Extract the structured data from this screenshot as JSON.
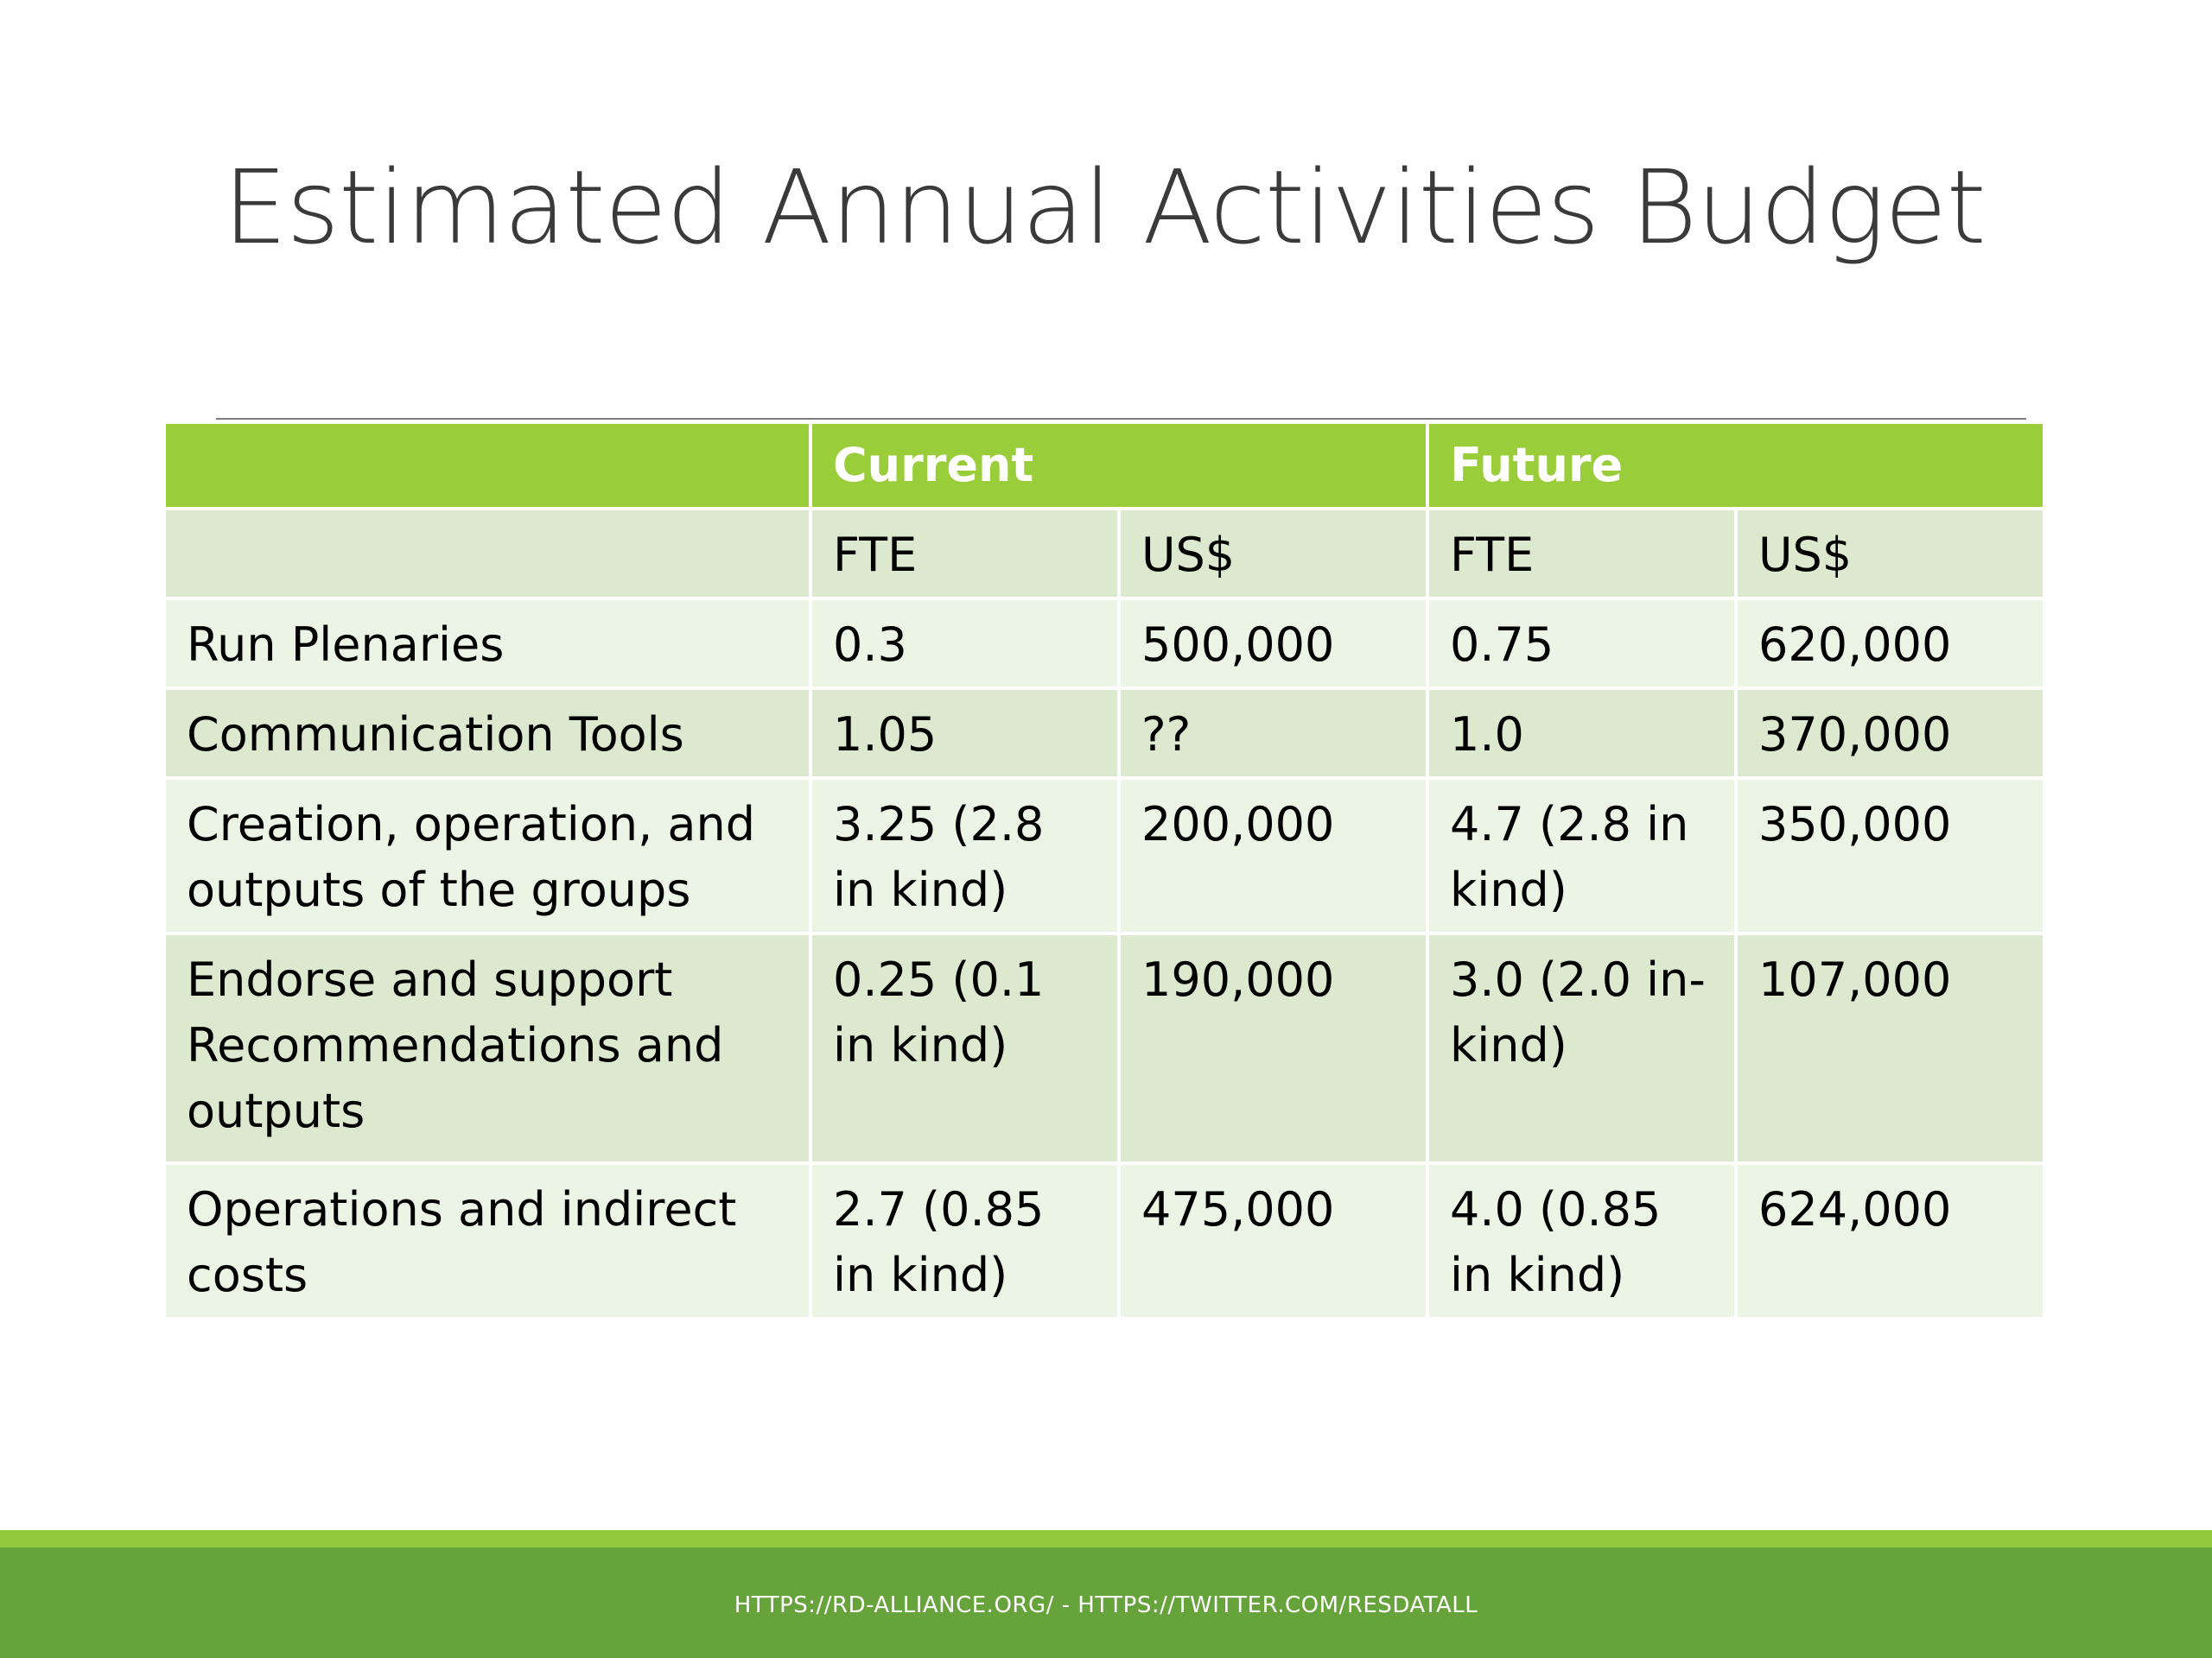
{
  "slide": {
    "title": "Estimated Annual Activities Budget"
  },
  "table": {
    "group_headers": [
      "",
      "Current",
      "Future"
    ],
    "sub_headers": [
      "",
      "FTE",
      "US$",
      "FTE",
      "US$"
    ],
    "rows": [
      [
        "Run Plenaries",
        "0.3",
        "500,000",
        "0.75",
        "620,000"
      ],
      [
        "Communication Tools",
        "1.05",
        "??",
        "1.0",
        "370,000"
      ],
      [
        "Creation, operation, and outputs of the groups",
        "3.25 (2.8 in kind)",
        "200,000",
        "4.7 (2.8 in kind)",
        "350,000"
      ],
      [
        "Endorse and support Recommendations and outputs",
        "0.25 (0.1 in kind)",
        "190,000",
        "3.0 (2.0 in-kind)",
        "107,000"
      ],
      [
        "Operations and indirect costs",
        "2.7 (0.85 in kind)",
        "475,000",
        "4.0 (0.85 in kind)",
        "624,000"
      ]
    ]
  },
  "footer": {
    "text": "HTTPS://RD-ALLIANCE.ORG/ - HTTPS://TWITTER.COM/RESDATALL"
  },
  "colors": {
    "header_green": "#9acd3a",
    "row_dark": "#dde9cf",
    "row_light": "#ecf4e6",
    "footer_green": "#66a33a"
  }
}
